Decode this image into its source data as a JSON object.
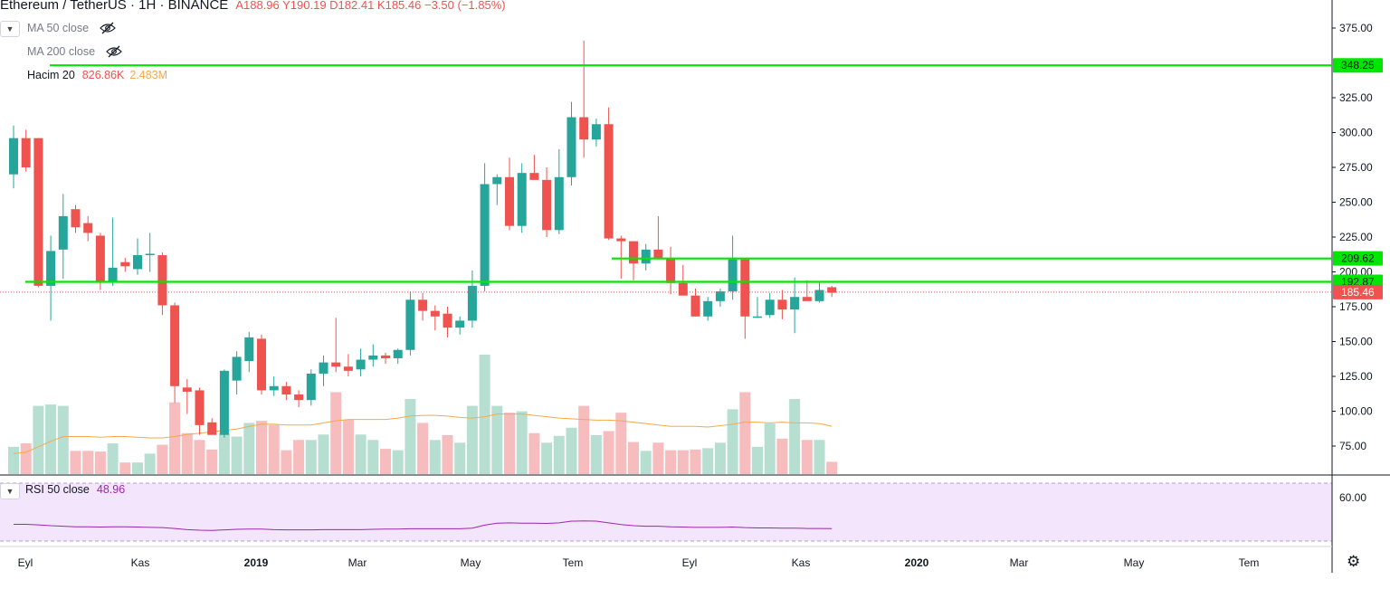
{
  "header": {
    "symbol": "Ethereum / TetherUS · 1H · BINANCE",
    "ohlc": "A188.96 Y190.19 D182.41 K185.46 −3.50 (−1.85%)"
  },
  "indicators": {
    "ma50": "MA 50 close",
    "ma200": "MA 200 close",
    "volume_label": "Hacim 20",
    "volume_value": "826.86K",
    "volume_ma": "2.483M",
    "rsi_label": "RSI 50 close",
    "rsi_value": "48.96"
  },
  "icons": [
    "chevron-down-icon",
    "eye-hidden-icon",
    "gear-icon"
  ],
  "colors": {
    "up": "#26a69a",
    "down": "#ef5350",
    "level_line": "#00e600",
    "rsi_line": "#9c27b0",
    "rsi_bg": "#f3e5fc",
    "volume_ma_line": "#f7a94b"
  },
  "chart_data": {
    "type": "candlestick",
    "title": "Ethereum / TetherUS · 1H · BINANCE",
    "ylim": [
      50,
      390
    ],
    "y_ticks": [
      "375.00",
      "325.00",
      "300.00",
      "275.00",
      "250.00",
      "225.00",
      "200.00",
      "175.00",
      "150.00",
      "125.00",
      "100.00",
      "75.00"
    ],
    "x_ticks": [
      "Eyl",
      "Kas",
      "2019",
      "Mar",
      "May",
      "Tem",
      "Eyl",
      "Kas",
      "2020",
      "Mar",
      "May",
      "Tem"
    ],
    "price_labels": [
      {
        "text": "348.25",
        "value": 348.25,
        "kind": "level"
      },
      {
        "text": "209.62",
        "value": 209.62,
        "kind": "level"
      },
      {
        "text": "192.87",
        "value": 192.87,
        "kind": "level"
      },
      {
        "text": "185.46",
        "value": 185.46,
        "kind": "last"
      }
    ],
    "levels": [
      348.25,
      209.62,
      192.87
    ],
    "last_price": 185.46,
    "candles": [
      {
        "o": 270,
        "h": 305,
        "l": 260,
        "c": 296
      },
      {
        "o": 296,
        "h": 302,
        "l": 272,
        "c": 275
      },
      {
        "o": 296,
        "h": 296,
        "l": 189,
        "c": 190
      },
      {
        "o": 190,
        "h": 226,
        "l": 165,
        "c": 215
      },
      {
        "o": 216,
        "h": 256,
        "l": 195,
        "c": 240
      },
      {
        "o": 245,
        "h": 248,
        "l": 228,
        "c": 232
      },
      {
        "o": 235,
        "h": 240,
        "l": 222,
        "c": 228
      },
      {
        "o": 226,
        "h": 228,
        "l": 187,
        "c": 193
      },
      {
        "o": 193,
        "h": 239,
        "l": 190,
        "c": 203
      },
      {
        "o": 207,
        "h": 210,
        "l": 200,
        "c": 204
      },
      {
        "o": 202,
        "h": 224,
        "l": 198,
        "c": 212
      },
      {
        "o": 212,
        "h": 228,
        "l": 200,
        "c": 213
      },
      {
        "o": 212,
        "h": 214,
        "l": 169,
        "c": 176
      },
      {
        "o": 176,
        "h": 178,
        "l": 106,
        "c": 118
      },
      {
        "o": 117,
        "h": 123,
        "l": 98,
        "c": 114
      },
      {
        "o": 115,
        "h": 117,
        "l": 83,
        "c": 90
      },
      {
        "o": 92,
        "h": 95,
        "l": 84,
        "c": 83
      },
      {
        "o": 83,
        "h": 130,
        "l": 81,
        "c": 129
      },
      {
        "o": 122,
        "h": 143,
        "l": 112,
        "c": 139
      },
      {
        "o": 136,
        "h": 157,
        "l": 128,
        "c": 153
      },
      {
        "o": 152,
        "h": 155,
        "l": 112,
        "c": 115
      },
      {
        "o": 115,
        "h": 125,
        "l": 111,
        "c": 118
      },
      {
        "o": 118,
        "h": 121,
        "l": 108,
        "c": 112
      },
      {
        "o": 112,
        "h": 115,
        "l": 103,
        "c": 108
      },
      {
        "o": 108,
        "h": 130,
        "l": 104,
        "c": 127
      },
      {
        "o": 127,
        "h": 140,
        "l": 118,
        "c": 135
      },
      {
        "o": 135,
        "h": 167,
        "l": 128,
        "c": 132
      },
      {
        "o": 132,
        "h": 141,
        "l": 125,
        "c": 129
      },
      {
        "o": 130,
        "h": 145,
        "l": 125,
        "c": 137
      },
      {
        "o": 137,
        "h": 148,
        "l": 132,
        "c": 140
      },
      {
        "o": 140,
        "h": 142,
        "l": 134,
        "c": 138
      },
      {
        "o": 138,
        "h": 145,
        "l": 134,
        "c": 144
      },
      {
        "o": 144,
        "h": 186,
        "l": 140,
        "c": 180
      },
      {
        "o": 180,
        "h": 185,
        "l": 165,
        "c": 172
      },
      {
        "o": 172,
        "h": 176,
        "l": 158,
        "c": 168
      },
      {
        "o": 170,
        "h": 175,
        "l": 153,
        "c": 160
      },
      {
        "o": 160,
        "h": 168,
        "l": 155,
        "c": 165
      },
      {
        "o": 165,
        "h": 201,
        "l": 160,
        "c": 190
      },
      {
        "o": 190,
        "h": 278,
        "l": 186,
        "c": 263
      },
      {
        "o": 263,
        "h": 270,
        "l": 248,
        "c": 268
      },
      {
        "o": 268,
        "h": 282,
        "l": 230,
        "c": 233
      },
      {
        "o": 233,
        "h": 278,
        "l": 228,
        "c": 271
      },
      {
        "o": 271,
        "h": 284,
        "l": 266,
        "c": 266
      },
      {
        "o": 266,
        "h": 275,
        "l": 225,
        "c": 230
      },
      {
        "o": 230,
        "h": 288,
        "l": 227,
        "c": 268
      },
      {
        "o": 268,
        "h": 322,
        "l": 262,
        "c": 311
      },
      {
        "o": 311,
        "h": 366,
        "l": 282,
        "c": 295
      },
      {
        "o": 295,
        "h": 310,
        "l": 290,
        "c": 306
      },
      {
        "o": 306,
        "h": 318,
        "l": 223,
        "c": 224
      },
      {
        "o": 224,
        "h": 226,
        "l": 195,
        "c": 222
      },
      {
        "o": 222,
        "h": 222,
        "l": 194,
        "c": 206
      },
      {
        "o": 206,
        "h": 220,
        "l": 201,
        "c": 216
      },
      {
        "o": 216,
        "h": 240,
        "l": 210,
        "c": 210
      },
      {
        "o": 210,
        "h": 218,
        "l": 184,
        "c": 192
      },
      {
        "o": 192,
        "h": 205,
        "l": 183,
        "c": 183
      },
      {
        "o": 183,
        "h": 188,
        "l": 168,
        "c": 168
      },
      {
        "o": 168,
        "h": 182,
        "l": 165,
        "c": 179
      },
      {
        "o": 179,
        "h": 188,
        "l": 175,
        "c": 186
      },
      {
        "o": 186,
        "h": 226,
        "l": 180,
        "c": 209
      },
      {
        "o": 209,
        "h": 210,
        "l": 152,
        "c": 168
      },
      {
        "o": 168,
        "h": 182,
        "l": 167,
        "c": 168
      },
      {
        "o": 169,
        "h": 185,
        "l": 167,
        "c": 180
      },
      {
        "o": 180,
        "h": 187,
        "l": 166,
        "c": 173
      },
      {
        "o": 173,
        "h": 196,
        "l": 156,
        "c": 182
      },
      {
        "o": 182,
        "h": 194,
        "l": 180,
        "c": 179
      },
      {
        "o": 179,
        "h": 193,
        "l": 178,
        "c": 187
      },
      {
        "o": 189,
        "h": 190,
        "l": 182,
        "c": 185
      }
    ],
    "volume": [
      {
        "v": 40,
        "up": true
      },
      {
        "v": 45,
        "up": false
      },
      {
        "v": 100,
        "up": true
      },
      {
        "v": 102,
        "up": true
      },
      {
        "v": 100,
        "up": true
      },
      {
        "v": 34,
        "up": false
      },
      {
        "v": 34,
        "up": false
      },
      {
        "v": 33,
        "up": false
      },
      {
        "v": 45,
        "up": true
      },
      {
        "v": 17,
        "up": false
      },
      {
        "v": 17,
        "up": true
      },
      {
        "v": 30,
        "up": true
      },
      {
        "v": 43,
        "up": false
      },
      {
        "v": 105,
        "up": false
      },
      {
        "v": 60,
        "up": false
      },
      {
        "v": 50,
        "up": false
      },
      {
        "v": 36,
        "up": false
      },
      {
        "v": 60,
        "up": true
      },
      {
        "v": 55,
        "up": true
      },
      {
        "v": 75,
        "up": true
      },
      {
        "v": 78,
        "up": false
      },
      {
        "v": 72,
        "up": false
      },
      {
        "v": 35,
        "up": false
      },
      {
        "v": 50,
        "up": false
      },
      {
        "v": 50,
        "up": true
      },
      {
        "v": 58,
        "up": true
      },
      {
        "v": 120,
        "up": false
      },
      {
        "v": 80,
        "up": false
      },
      {
        "v": 58,
        "up": true
      },
      {
        "v": 50,
        "up": true
      },
      {
        "v": 37,
        "up": false
      },
      {
        "v": 35,
        "up": true
      },
      {
        "v": 110,
        "up": true
      },
      {
        "v": 75,
        "up": false
      },
      {
        "v": 50,
        "up": true
      },
      {
        "v": 57,
        "up": false
      },
      {
        "v": 46,
        "up": true
      },
      {
        "v": 100,
        "up": true
      },
      {
        "v": 175,
        "up": true
      },
      {
        "v": 100,
        "up": true
      },
      {
        "v": 90,
        "up": false
      },
      {
        "v": 92,
        "up": true
      },
      {
        "v": 60,
        "up": false
      },
      {
        "v": 46,
        "up": true
      },
      {
        "v": 56,
        "up": true
      },
      {
        "v": 68,
        "up": true
      },
      {
        "v": 100,
        "up": false
      },
      {
        "v": 57,
        "up": true
      },
      {
        "v": 63,
        "up": false
      },
      {
        "v": 90,
        "up": false
      },
      {
        "v": 47,
        "up": false
      },
      {
        "v": 34,
        "up": true
      },
      {
        "v": 46,
        "up": false
      },
      {
        "v": 35,
        "up": false
      },
      {
        "v": 35,
        "up": false
      },
      {
        "v": 36,
        "up": false
      },
      {
        "v": 38,
        "up": true
      },
      {
        "v": 46,
        "up": true
      },
      {
        "v": 95,
        "up": true
      },
      {
        "v": 120,
        "up": false
      },
      {
        "v": 40,
        "up": true
      },
      {
        "v": 74,
        "up": true
      },
      {
        "v": 52,
        "up": false
      },
      {
        "v": 110,
        "up": true
      },
      {
        "v": 50,
        "up": false
      },
      {
        "v": 50,
        "up": true
      },
      {
        "v": 18,
        "up": false
      }
    ],
    "volume_ma": [
      30,
      32,
      40,
      48,
      55,
      55,
      55,
      54,
      55,
      55,
      54,
      53,
      53,
      55,
      58,
      60,
      62,
      64,
      66,
      70,
      73,
      73,
      72,
      72,
      72,
      75,
      78,
      80,
      80,
      80,
      80,
      82,
      85,
      86,
      86,
      85,
      83,
      82,
      84,
      88,
      88,
      88,
      86,
      84,
      82,
      81,
      80,
      79,
      79,
      78,
      76,
      74,
      72,
      70,
      70,
      70,
      69,
      71,
      73,
      76,
      76,
      75,
      76,
      75,
      75,
      74,
      70
    ],
    "rsi_ylim": [
      30,
      70
    ],
    "rsi_ticks": [
      "60.00"
    ],
    "rsi": [
      50.5,
      50.5,
      50.3,
      50.0,
      49.8,
      49.6,
      49.6,
      49.5,
      49.6,
      49.6,
      49.5,
      49.4,
      49.3,
      49.0,
      48.6,
      48.4,
      48.3,
      48.5,
      48.7,
      48.8,
      48.8,
      48.6,
      48.5,
      48.5,
      48.5,
      48.6,
      48.6,
      48.6,
      48.6,
      48.7,
      48.8,
      48.8,
      48.9,
      48.9,
      48.9,
      48.9,
      48.9,
      49.1,
      50.2,
      50.9,
      51.0,
      50.9,
      50.9,
      50.8,
      51.0,
      51.6,
      51.7,
      51.6,
      51.0,
      50.4,
      50.0,
      49.8,
      49.8,
      49.6,
      49.5,
      49.4,
      49.4,
      49.4,
      49.5,
      49.3,
      49.2,
      49.2,
      49.1,
      49.1,
      49.0,
      49.0,
      48.96
    ]
  }
}
